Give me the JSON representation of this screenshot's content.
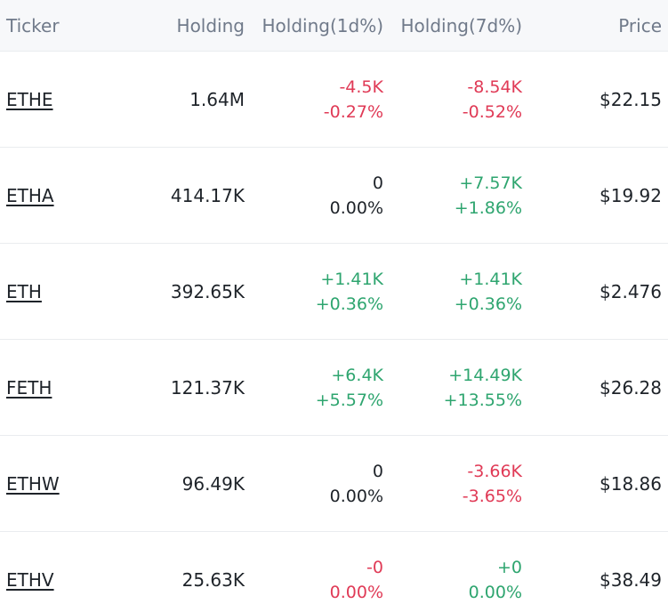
{
  "header": {
    "ticker": "Ticker",
    "holding": "Holding",
    "holding_1d": "Holding(1d%)",
    "holding_7d": "Holding(7d%)",
    "price": "Price"
  },
  "colors": {
    "negative": "#e03a56",
    "positive": "#2ea56f",
    "neutral": "#1e2329"
  },
  "rows": [
    {
      "ticker": "ETHE",
      "holding": "1.64M",
      "d1_abs": "-4.5K",
      "d1_pct": "-0.27%",
      "d1_abs_trend": "neg",
      "d1_pct_trend": "neg",
      "d7_abs": "-8.54K",
      "d7_pct": "-0.52%",
      "d7_abs_trend": "neg",
      "d7_pct_trend": "neg",
      "price": "$22.15"
    },
    {
      "ticker": "ETHA",
      "holding": "414.17K",
      "d1_abs": "0",
      "d1_pct": "0.00%",
      "d1_abs_trend": "neu",
      "d1_pct_trend": "neu",
      "d7_abs": "+7.57K",
      "d7_pct": "+1.86%",
      "d7_abs_trend": "pos",
      "d7_pct_trend": "pos",
      "price": "$19.92"
    },
    {
      "ticker": "ETH",
      "holding": "392.65K",
      "d1_abs": "+1.41K",
      "d1_pct": "+0.36%",
      "d1_abs_trend": "pos",
      "d1_pct_trend": "pos",
      "d7_abs": "+1.41K",
      "d7_pct": "+0.36%",
      "d7_abs_trend": "pos",
      "d7_pct_trend": "pos",
      "price": "$2.476"
    },
    {
      "ticker": "FETH",
      "holding": "121.37K",
      "d1_abs": "+6.4K",
      "d1_pct": "+5.57%",
      "d1_abs_trend": "pos",
      "d1_pct_trend": "pos",
      "d7_abs": "+14.49K",
      "d7_pct": "+13.55%",
      "d7_abs_trend": "pos",
      "d7_pct_trend": "pos",
      "price": "$26.28"
    },
    {
      "ticker": "ETHW",
      "holding": "96.49K",
      "d1_abs": "0",
      "d1_pct": "0.00%",
      "d1_abs_trend": "neu",
      "d1_pct_trend": "neu",
      "d7_abs": "-3.66K",
      "d7_pct": "-3.65%",
      "d7_abs_trend": "neg",
      "d7_pct_trend": "neg",
      "price": "$18.86"
    },
    {
      "ticker": "ETHV",
      "holding": "25.63K",
      "d1_abs": "-0",
      "d1_pct": "0.00%",
      "d1_abs_trend": "neg",
      "d1_pct_trend": "neg",
      "d7_abs": "+0",
      "d7_pct": "0.00%",
      "d7_abs_trend": "pos",
      "d7_pct_trend": "pos",
      "price": "$38.49"
    }
  ]
}
